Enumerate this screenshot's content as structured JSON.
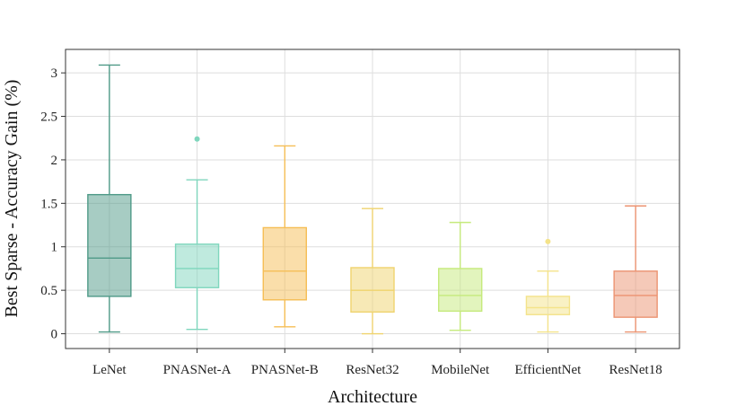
{
  "chart_data": {
    "type": "box",
    "title": "",
    "xlabel": "Architecture",
    "ylabel": "Best Sparse - Accuracy Gain (%)",
    "ylim": [
      -0.17,
      3.27
    ],
    "yticks": [
      0,
      0.5,
      1,
      1.5,
      2,
      2.5,
      3
    ],
    "ytick_labels": [
      "0",
      "0.5",
      "1",
      "1.5",
      "2",
      "2.5",
      "3"
    ],
    "grid": true,
    "categories": [
      "LeNet",
      "PNASNet-A",
      "PNASNet-B",
      "ResNet32",
      "MobileNet",
      "EfficientNet",
      "ResNet18"
    ],
    "boxes": [
      {
        "name": "LeNet",
        "whisker_low": 0.02,
        "q1": 0.43,
        "median": 0.87,
        "q3": 1.6,
        "whisker_high": 3.09,
        "outliers": [],
        "color": "#4f9a88"
      },
      {
        "name": "PNASNet-A",
        "whisker_low": 0.05,
        "q1": 0.53,
        "median": 0.75,
        "q3": 1.03,
        "whisker_high": 1.77,
        "outliers": [
          2.24
        ],
        "color": "#7fd6bd"
      },
      {
        "name": "PNASNet-B",
        "whisker_low": 0.08,
        "q1": 0.39,
        "median": 0.72,
        "q3": 1.22,
        "whisker_high": 2.16,
        "outliers": [],
        "color": "#f6be55"
      },
      {
        "name": "ResNet32",
        "whisker_low": 0.0,
        "q1": 0.25,
        "median": 0.5,
        "q3": 0.76,
        "whisker_high": 1.44,
        "outliers": [],
        "color": "#efd36e"
      },
      {
        "name": "MobileNet",
        "whisker_low": 0.04,
        "q1": 0.26,
        "median": 0.44,
        "q3": 0.75,
        "whisker_high": 1.28,
        "outliers": [],
        "color": "#c5ea7c"
      },
      {
        "name": "EfficientNet",
        "whisker_low": 0.02,
        "q1": 0.22,
        "median": 0.3,
        "q3": 0.43,
        "whisker_high": 0.72,
        "outliers": [
          1.06
        ],
        "color": "#f4e38a"
      },
      {
        "name": "ResNet18",
        "whisker_low": 0.02,
        "q1": 0.19,
        "median": 0.44,
        "q3": 0.72,
        "whisker_high": 1.47,
        "outliers": [],
        "color": "#ec9371"
      }
    ]
  }
}
